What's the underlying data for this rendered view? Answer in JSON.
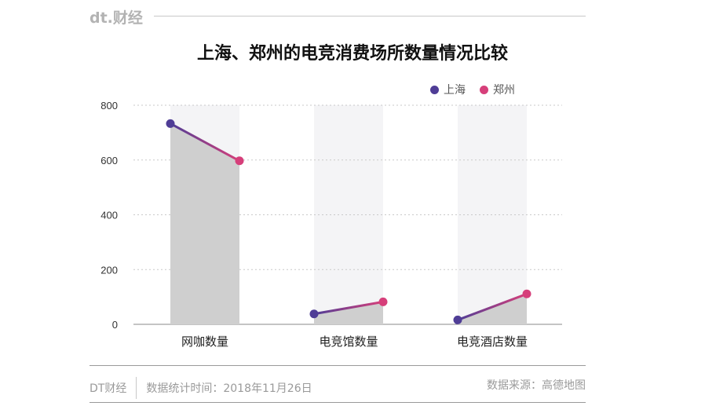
{
  "header": {
    "brand": "dt.财经"
  },
  "footer": {
    "brand": "DT财经",
    "date_note": "数据统计时间：2018年11月26日",
    "source": "数据来源：高德地图"
  },
  "colors": {
    "shanghai": "#4f3d96",
    "zhengzhou": "#d63f7a",
    "area": "#cfcfcf",
    "band": "#f4f4f6"
  },
  "chart_data": {
    "type": "line",
    "title": "上海、郑州的电竞消费场所数量情况比较",
    "categories": [
      "网咖数量",
      "电竞馆数量",
      "电竞酒店数量"
    ],
    "series": [
      {
        "name": "上海",
        "values": [
          733,
          38,
          16
        ]
      },
      {
        "name": "郑州",
        "values": [
          597,
          82,
          111
        ]
      }
    ],
    "ylim": [
      0,
      800
    ],
    "yticks": [
      0,
      200,
      400,
      600,
      800
    ],
    "grid": true,
    "legend": "top-right"
  }
}
